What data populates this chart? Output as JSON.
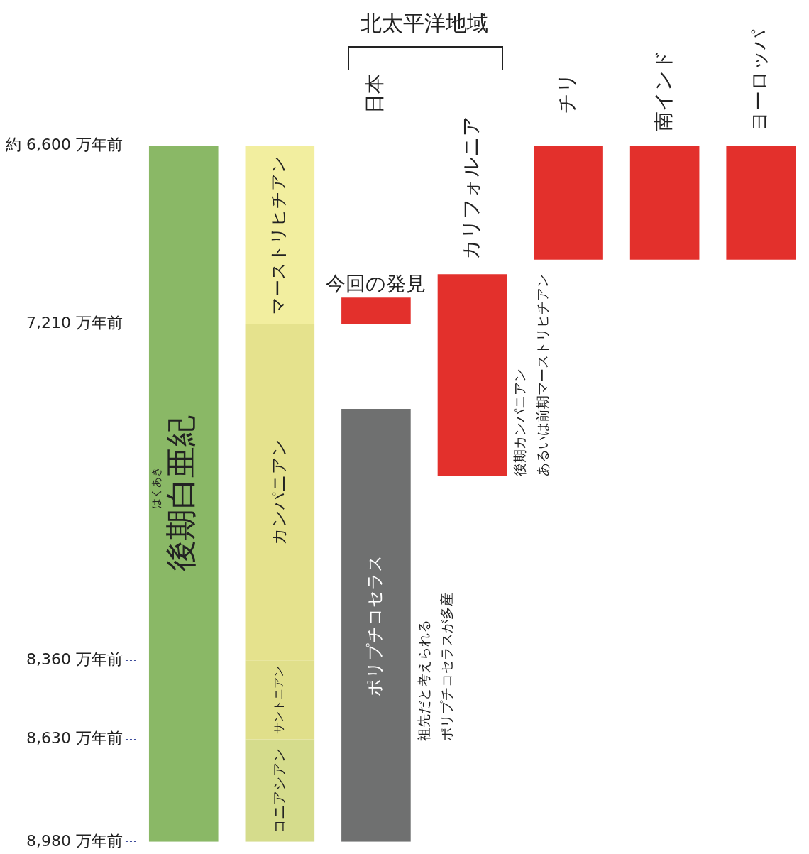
{
  "chart_data": {
    "type": "bar",
    "categories": [
      null,
      null,
      "日本",
      "カリフォルニア",
      "チリ",
      "南インド",
      "ヨーロッパ"
    ],
    "series": [
      {
        "name": "後期白亜紀",
        "color": "#8ab866",
        "values": [
          2380,
          null,
          null,
          null,
          null,
          null,
          null
        ],
        "base": [
          6600,
          null,
          null,
          null,
          null,
          null,
          null
        ]
      },
      {
        "name": "マーストリヒチアン",
        "color": "#f2ee9f",
        "values": [
          null,
          610,
          null,
          null,
          null,
          null,
          null
        ],
        "base": [
          null,
          6600,
          null,
          null,
          null,
          null,
          null
        ]
      },
      {
        "name": "カンパニアン",
        "color": "#e5e28d",
        "values": [
          null,
          1150,
          null,
          null,
          null,
          null,
          null
        ],
        "base": [
          null,
          7210,
          null,
          null,
          null,
          null,
          null
        ]
      },
      {
        "name": "サントニアン",
        "color": "#e0df8a",
        "values": [
          null,
          270,
          null,
          null,
          null,
          null,
          null
        ],
        "base": [
          null,
          8360,
          null,
          null,
          null,
          null,
          null
        ]
      },
      {
        "name": "コニアシアン",
        "color": "#d5dc8c",
        "values": [
          null,
          350,
          null,
          null,
          null,
          null,
          null
        ],
        "base": [
          null,
          8630,
          null,
          null,
          null,
          null,
          null
        ]
      },
      {
        "color": "#e3302c",
        "values": [
          null,
          null,
          90,
          690,
          390,
          390,
          390
        ],
        "base": [
          null,
          null,
          7120,
          7040,
          6600,
          6600,
          6600
        ]
      },
      {
        "name": "ポリプチコセラス",
        "color": "#6f7070",
        "values": [
          null,
          null,
          1480,
          null,
          null,
          null,
          null
        ],
        "base": [
          null,
          null,
          7500,
          null,
          null,
          null,
          null
        ]
      }
    ],
    "ylim": [
      8980,
      6600
    ],
    "yticks": [
      {
        "value": 6600,
        "label": "約 6,600 万年前"
      },
      {
        "value": 7210,
        "label": "7,210 万年前"
      },
      {
        "value": 8360,
        "label": "8,360 万年前"
      },
      {
        "value": 8630,
        "label": "8,630 万年前"
      },
      {
        "value": 8980,
        "label": "8,980 万年前"
      }
    ],
    "annotations": [
      "北太平洋地域",
      "はくあき",
      "今回の発見",
      "祖先だと考えられる",
      "ポリプチコセラスが多産",
      "後期カンパニアン",
      "あるいは前期マーストリヒチアン"
    ],
    "legend": false,
    "grid": false
  }
}
